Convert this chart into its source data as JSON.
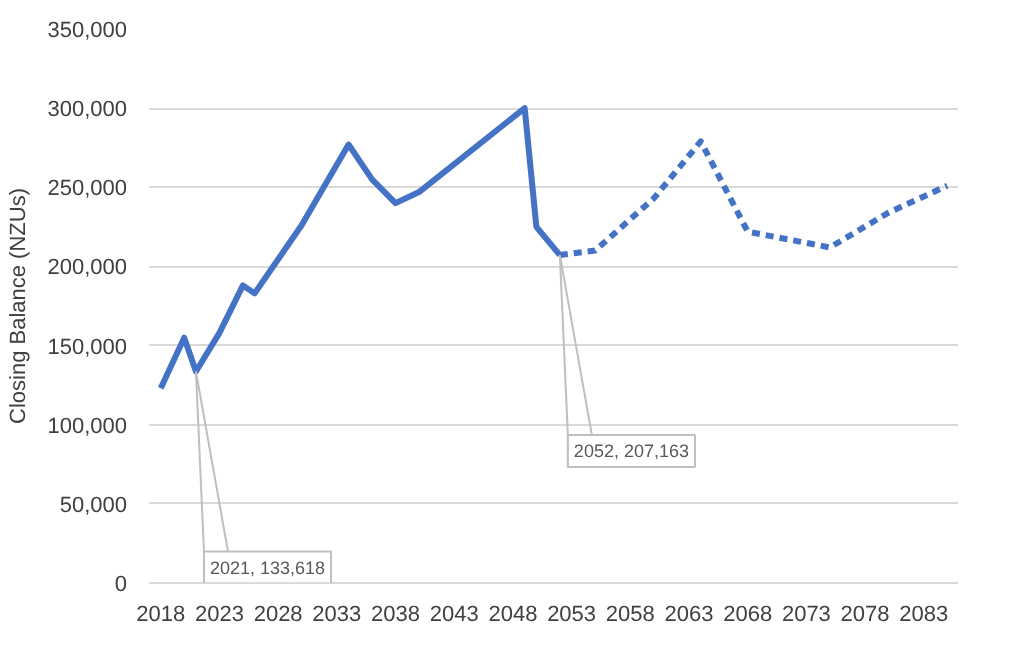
{
  "chart_data": {
    "type": "line",
    "ylabel": "Closing Balance (NZUs)",
    "series": [
      {
        "color": "#4472c4",
        "line_style": "solid",
        "x": [
          2018,
          2020,
          2021,
          2023,
          2025,
          2026,
          2030,
          2034,
          2036,
          2038,
          2040,
          2049,
          2050,
          2052
        ],
        "values": [
          123000,
          155000,
          133618,
          158000,
          188000,
          183000,
          226000,
          277000,
          255000,
          240000,
          247000,
          300000,
          225000,
          207163
        ]
      },
      {
        "color": "#4472c4",
        "line_style": "dashed",
        "x": [
          2052,
          2055,
          2060,
          2064,
          2068,
          2075,
          2080,
          2085
        ],
        "values": [
          207163,
          210000,
          243000,
          279000,
          222000,
          212000,
          234000,
          251000
        ]
      }
    ],
    "xlim": [
      2017,
      2086
    ],
    "xticks": [
      2018,
      2023,
      2028,
      2033,
      2038,
      2043,
      2048,
      2053,
      2058,
      2063,
      2068,
      2073,
      2078,
      2083
    ],
    "ylim": [
      0,
      350000
    ],
    "yticks": [
      {
        "value": 0,
        "label": "0"
      },
      {
        "value": 50000,
        "label": "50,000"
      },
      {
        "value": 100000,
        "label": "100,000"
      },
      {
        "value": 150000,
        "label": "150,000"
      },
      {
        "value": 200000,
        "label": "200,000"
      },
      {
        "value": 250000,
        "label": "250,000"
      },
      {
        "value": 300000,
        "label": "300,000"
      },
      {
        "value": 350000,
        "label": "350,000"
      }
    ],
    "annotations": [
      {
        "text": "2021, 133,618",
        "x": 2021,
        "y": 133618
      },
      {
        "text": "2052, 207,163",
        "x": 2052,
        "y": 207163
      }
    ],
    "grid": "y",
    "marker": "none"
  }
}
